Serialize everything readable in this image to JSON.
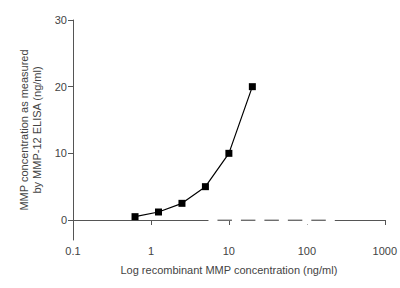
{
  "chart_data": {
    "type": "line",
    "x_label": "Log recombinant MMP concentration (ng/ml)",
    "y_label": "MMP concentration as measured\nby MMP-12 ELISA (ng/ml)",
    "log": "x",
    "grid": false,
    "xlim": [
      0.1,
      1000
    ],
    "xticks": [
      0.1,
      1,
      10,
      100,
      1000
    ],
    "ylim": [
      -3,
      30
    ],
    "yticks": [
      0,
      10,
      20,
      30
    ],
    "series": [
      {
        "color": "#000000",
        "marker": "square",
        "line_style": "solid",
        "x": [
          0.625,
          1.25,
          2.5,
          5,
          10,
          20
        ],
        "values": [
          0.5,
          1.2,
          2.5,
          5,
          10,
          20
        ]
      },
      {
        "color": "#888888",
        "marker": "open_square",
        "line_style": "solid",
        "x": [
          6.25,
          12.5,
          25,
          50,
          100,
          200
        ],
        "values": [
          0,
          0,
          0,
          0,
          0,
          0
        ]
      }
    ]
  }
}
